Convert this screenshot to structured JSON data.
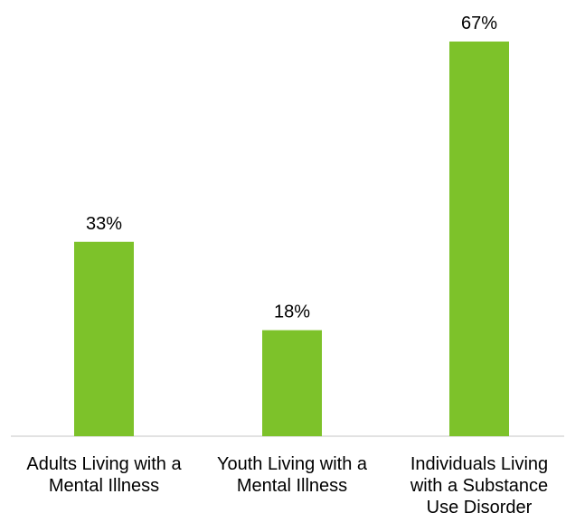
{
  "chart_data": {
    "type": "bar",
    "categories": [
      [
        "Adults Living with a",
        "Mental Illness"
      ],
      [
        "Youth Living with a",
        "Mental Illness"
      ],
      [
        "Individuals Living",
        "with a Substance",
        "Use Disorder"
      ]
    ],
    "values": [
      33,
      18,
      67
    ],
    "data_labels": [
      "33%",
      "18%",
      "67%"
    ],
    "unit": "%",
    "title": "",
    "xlabel": "",
    "ylabel": "",
    "ylim": [
      0,
      70
    ],
    "grid": false,
    "legend": "none",
    "bar_color": "#7dc22a",
    "axis_color": "#d9d9d9"
  }
}
